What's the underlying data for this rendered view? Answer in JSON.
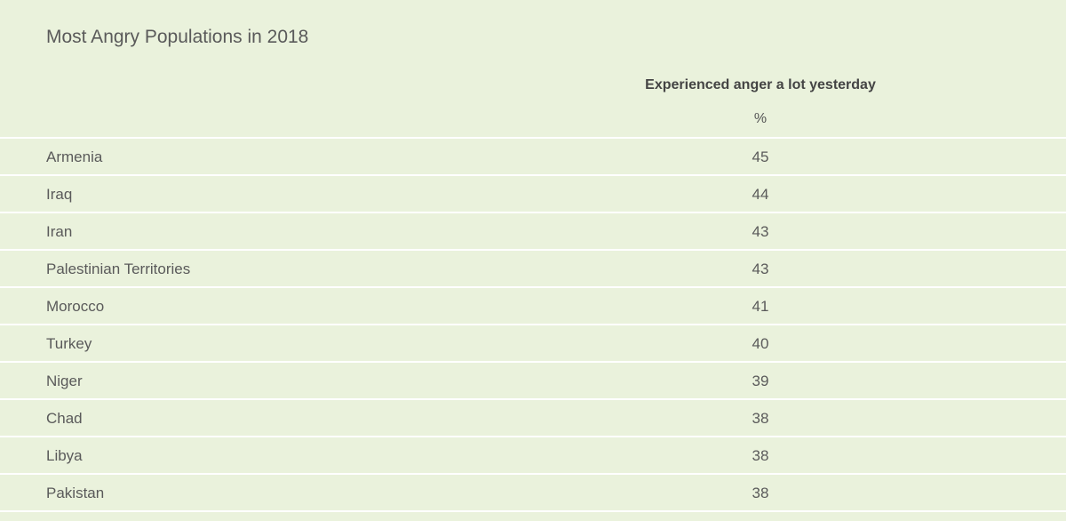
{
  "chart_data": {
    "type": "table",
    "title": "Most Angry Populations in 2018",
    "column_header": "Experienced anger a lot yesterday",
    "unit": "%",
    "categories": [
      "Armenia",
      "Iraq",
      "Iran",
      "Palestinian Territories",
      "Morocco",
      "Turkey",
      "Niger",
      "Chad",
      "Libya",
      "Pakistan"
    ],
    "values": [
      45,
      44,
      43,
      43,
      41,
      40,
      39,
      38,
      38,
      38
    ]
  },
  "colors": {
    "background": "#eaf2dc",
    "divider": "#ffffff",
    "text": "#5a5a5a",
    "header_text": "#444444"
  }
}
